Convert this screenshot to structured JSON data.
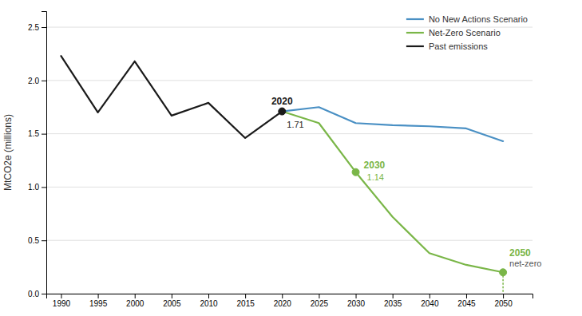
{
  "chart_data": {
    "type": "line",
    "y_label": "MtCO2e (millions)",
    "xlim": [
      1988,
      2054
    ],
    "xticks": [
      1990,
      1995,
      2000,
      2005,
      2010,
      2015,
      2020,
      2025,
      2030,
      2035,
      2040,
      2045,
      2050
    ],
    "ylim": [
      0.0,
      2.65
    ],
    "yticks": [
      {
        "value": 0.0,
        "label": "0.0"
      },
      0.5,
      {
        "value": 1.0,
        "label": "1.0"
      },
      1.5,
      {
        "value": 2.0,
        "label": "2.0"
      },
      2.5
    ],
    "grid": true,
    "legend": "upper right",
    "series": [
      {
        "name": "No New Actions Scenario",
        "color": "#4a90c4",
        "x": [
          2020,
          2025,
          2030,
          2035,
          2040,
          2045,
          2050
        ],
        "values": [
          1.71,
          1.75,
          1.6,
          1.58,
          1.57,
          1.55,
          1.43
        ]
      },
      {
        "name": "Net-Zero Scenario",
        "color": "#7ab648",
        "x": [
          2020,
          2025,
          2030,
          2035,
          2040,
          2045,
          2050
        ],
        "values": [
          1.71,
          1.6,
          1.14,
          0.72,
          0.38,
          0.27,
          0.2
        ]
      },
      {
        "name": "Past emissions",
        "color": "#1a1a1a",
        "x": [
          1990,
          1995,
          2000,
          2005,
          2010,
          2015,
          2020
        ],
        "values": [
          2.23,
          1.7,
          2.18,
          1.67,
          1.79,
          1.46,
          1.71
        ]
      },
      {
        "color": "#7ab648",
        "line_style": "dotted",
        "x": [
          2050,
          2050
        ],
        "values": [
          0.2,
          0.0
        ]
      }
    ],
    "annotations": [
      {
        "x": 2020,
        "y": 1.71,
        "label": "2020",
        "note": "1.71",
        "color": "#1a1a1a",
        "note_color": "#1a1a1a"
      },
      {
        "x": 2030,
        "y": 1.14,
        "label": "2030",
        "note": "1.14",
        "color": "#7ab648",
        "note_color": "#7ab648"
      },
      {
        "x": 2050,
        "y": 0.2,
        "label": "2050",
        "note": "net-zero",
        "color": "#7ab648",
        "note_color": "#555555"
      }
    ]
  }
}
